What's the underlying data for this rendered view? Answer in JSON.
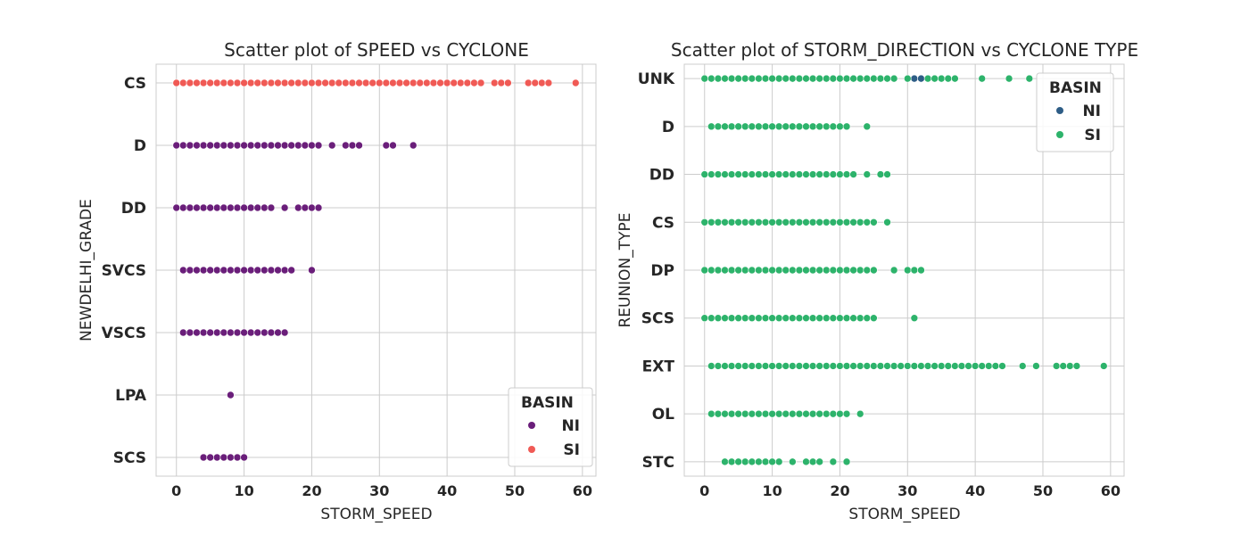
{
  "chart_data": [
    {
      "type": "scatter",
      "title": "Scatter plot of SPEED vs CYCLONE",
      "xlabel": "STORM_SPEED",
      "ylabel": "NEWDELHI_GRADE",
      "xlim": [
        -3,
        62
      ],
      "xticks": [
        0,
        10,
        20,
        30,
        40,
        50,
        60
      ],
      "xtick_labels": [
        "0",
        "10",
        "20",
        "30",
        "40",
        "50",
        "60"
      ],
      "categories": [
        "CS",
        "D",
        "DD",
        "SVCS",
        "VSCS",
        "LPA",
        "SCS"
      ],
      "grid": true,
      "legend": {
        "title": "BASIN",
        "placement": "lower-right"
      },
      "series": [
        {
          "name": "NI",
          "color": "#6a1e7a",
          "points": [
            {
              "cat": "D",
              "x": [
                0,
                1,
                2,
                3,
                4,
                5,
                6,
                7,
                8,
                9,
                10,
                11,
                12,
                13,
                14,
                15,
                16,
                17,
                18,
                19,
                20,
                21,
                23,
                25,
                26,
                27,
                31,
                32,
                35
              ]
            },
            {
              "cat": "DD",
              "x": [
                0,
                1,
                2,
                3,
                4,
                5,
                6,
                7,
                8,
                9,
                10,
                11,
                12,
                13,
                14,
                16,
                18,
                19,
                20,
                21
              ]
            },
            {
              "cat": "SVCS",
              "x": [
                1,
                2,
                3,
                4,
                5,
                6,
                7,
                8,
                9,
                10,
                11,
                12,
                13,
                14,
                15,
                16,
                17,
                20
              ]
            },
            {
              "cat": "VSCS",
              "x": [
                1,
                2,
                3,
                4,
                5,
                6,
                7,
                8,
                9,
                10,
                11,
                12,
                13,
                14,
                15,
                16
              ]
            },
            {
              "cat": "LPA",
              "x": [
                8
              ]
            },
            {
              "cat": "SCS",
              "x": [
                4,
                5,
                6,
                7,
                8,
                9,
                10
              ]
            }
          ]
        },
        {
          "name": "SI",
          "color": "#f05a55",
          "points": [
            {
              "cat": "CS",
              "x": [
                0,
                1,
                2,
                3,
                4,
                5,
                6,
                7,
                8,
                9,
                10,
                11,
                12,
                13,
                14,
                15,
                16,
                17,
                18,
                19,
                20,
                21,
                22,
                23,
                24,
                25,
                26,
                27,
                28,
                29,
                30,
                31,
                32,
                33,
                34,
                35,
                36,
                37,
                38,
                39,
                40,
                41,
                42,
                43,
                44,
                45,
                47,
                48,
                49,
                52,
                53,
                54,
                55,
                59
              ]
            }
          ]
        }
      ]
    },
    {
      "type": "scatter",
      "title": "Scatter plot of STORM_DIRECTION vs CYCLONE TYPE",
      "xlabel": "STORM_SPEED",
      "ylabel": "REUNION_TYPE",
      "xlim": [
        -3,
        62
      ],
      "xticks": [
        0,
        10,
        20,
        30,
        40,
        50,
        60
      ],
      "xtick_labels": [
        "0",
        "10",
        "20",
        "30",
        "40",
        "50",
        "60"
      ],
      "categories": [
        "UNK",
        "D",
        "DD",
        "CS",
        "DP",
        "SCS",
        "EXT",
        "OL",
        "STC"
      ],
      "grid": true,
      "legend": {
        "title": "BASIN",
        "placement": "upper-right"
      },
      "series": [
        {
          "name": "NI",
          "color": "#2e5d86",
          "points": [
            {
              "cat": "UNK",
              "x": [
                31,
                32
              ]
            }
          ]
        },
        {
          "name": "SI",
          "color": "#2db36b",
          "points": [
            {
              "cat": "UNK",
              "x": [
                0,
                1,
                2,
                3,
                4,
                5,
                6,
                7,
                8,
                9,
                10,
                11,
                12,
                13,
                14,
                15,
                16,
                17,
                18,
                19,
                20,
                21,
                22,
                23,
                24,
                25,
                26,
                27,
                28,
                30,
                33,
                34,
                35,
                36,
                37,
                41,
                45,
                48
              ]
            },
            {
              "cat": "D",
              "x": [
                1,
                2,
                3,
                4,
                5,
                6,
                7,
                8,
                9,
                10,
                11,
                12,
                13,
                14,
                15,
                16,
                17,
                18,
                19,
                20,
                21,
                24
              ]
            },
            {
              "cat": "DD",
              "x": [
                0,
                1,
                2,
                3,
                4,
                5,
                6,
                7,
                8,
                9,
                10,
                11,
                12,
                13,
                14,
                15,
                16,
                17,
                18,
                19,
                20,
                21,
                22,
                24,
                26,
                27
              ]
            },
            {
              "cat": "CS",
              "x": [
                0,
                1,
                2,
                3,
                4,
                5,
                6,
                7,
                8,
                9,
                10,
                11,
                12,
                13,
                14,
                15,
                16,
                17,
                18,
                19,
                20,
                21,
                22,
                23,
                24,
                25,
                27
              ]
            },
            {
              "cat": "DP",
              "x": [
                0,
                1,
                2,
                3,
                4,
                5,
                6,
                7,
                8,
                9,
                10,
                11,
                12,
                13,
                14,
                15,
                16,
                17,
                18,
                19,
                20,
                21,
                22,
                23,
                24,
                25,
                28,
                30,
                31,
                32
              ]
            },
            {
              "cat": "SCS",
              "x": [
                0,
                1,
                2,
                3,
                4,
                5,
                6,
                7,
                8,
                9,
                10,
                11,
                12,
                13,
                14,
                15,
                16,
                17,
                18,
                19,
                20,
                21,
                22,
                23,
                24,
                25,
                31
              ]
            },
            {
              "cat": "EXT",
              "x": [
                1,
                2,
                3,
                4,
                5,
                6,
                7,
                8,
                9,
                10,
                11,
                12,
                13,
                14,
                15,
                16,
                17,
                18,
                19,
                20,
                21,
                22,
                23,
                24,
                25,
                26,
                27,
                28,
                29,
                30,
                31,
                32,
                33,
                34,
                35,
                36,
                37,
                38,
                39,
                40,
                41,
                42,
                43,
                44,
                47,
                49,
                52,
                53,
                54,
                55,
                59
              ]
            },
            {
              "cat": "OL",
              "x": [
                1,
                2,
                3,
                4,
                5,
                6,
                7,
                8,
                9,
                10,
                11,
                12,
                13,
                14,
                15,
                16,
                17,
                18,
                19,
                20,
                21,
                23
              ]
            },
            {
              "cat": "STC",
              "x": [
                3,
                4,
                5,
                6,
                7,
                8,
                9,
                10,
                11,
                13,
                15,
                16,
                17,
                19,
                21
              ]
            }
          ]
        }
      ]
    }
  ]
}
